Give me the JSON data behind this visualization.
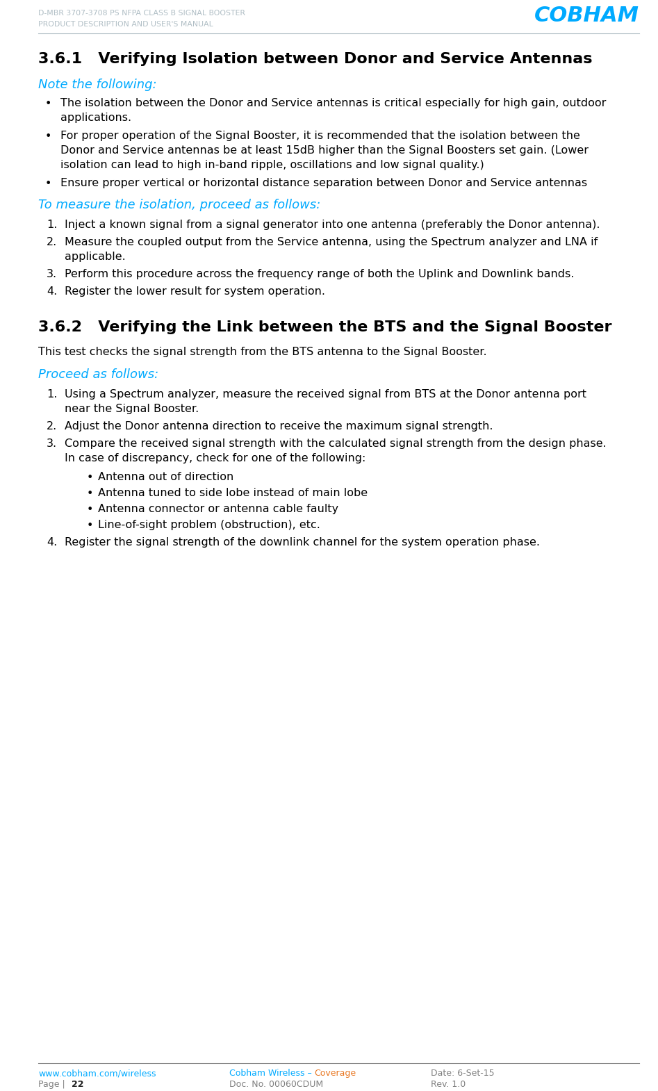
{
  "header_left_line1": "D-MBR 3707-3708 PS NFPA CLASS B SIGNAL BOOSTER",
  "header_left_line2": "PRODUCT DESCRIPTION AND USER'S MANUAL",
  "header_color": "#b0bec5",
  "cobham_color": "#00aaff",
  "cobham_text": "COBHAM",
  "footer_link_color": "#00aaff",
  "footer_orange_color": "#e87722",
  "footer_gray_color": "#808080",
  "footer_bold_color": "#222222",
  "bg_color": "#ffffff",
  "section_361_title": "3.6.1   Verifying Isolation between Donor and Service Antennas",
  "section_362_title": "3.6.2   Verifying the Link between the BTS and the Signal Booster",
  "note_heading": "Note the following:",
  "measure_heading": "To measure the isolation, proceed as follows:",
  "proceed_heading": "Proceed as follows:",
  "heading_color": "#00aaff",
  "section_title_color": "#000000",
  "body_color": "#000000",
  "bullet_items_361": [
    [
      "The isolation between the Donor and Service antennas is critical especially for high gain, outdoor",
      "applications."
    ],
    [
      "For proper operation of the Signal Booster, it is recommended that the isolation between the",
      "Donor and Service antennas be at least 15dB higher than the Signal Boosters set gain. (Lower",
      "isolation can lead to high in-band ripple, oscillations and low signal quality.)"
    ],
    [
      "Ensure proper vertical or horizontal distance separation between Donor and Service antennas"
    ]
  ],
  "numbered_items_361": [
    [
      "Inject a known signal from a signal generator into one antenna (preferably the Donor antenna)."
    ],
    [
      "Measure the coupled output from the Service antenna, using the Spectrum analyzer and LNA if",
      "applicable."
    ],
    [
      "Perform this procedure across the frequency range of both the Uplink and Downlink bands."
    ],
    [
      "Register the lower result for system operation."
    ]
  ],
  "section_362_intro": "This test checks the signal strength from the BTS antenna to the Signal Booster.",
  "numbered_items_362_pre": [
    [
      "Using a Spectrum analyzer, measure the received signal from BTS at the Donor antenna port",
      "near the Signal Booster."
    ],
    [
      "Adjust the Donor antenna direction to receive the maximum signal strength."
    ],
    [
      "Compare the received signal strength with the calculated signal strength from the design phase.",
      "In case of discrepancy, check for one of the following:"
    ]
  ],
  "sub_bullet_items_362": [
    "Antenna out of direction",
    "Antenna tuned to side lobe instead of main lobe",
    "Antenna connector or antenna cable faulty",
    "Line-of-sight problem (obstruction), etc."
  ],
  "numbered_item_362_last": [
    "Register the signal strength of the downlink channel for the system operation phase."
  ],
  "footer_col1_line1": "www.cobham.com/wireless",
  "footer_col1_line2": "Page | 22",
  "footer_col2_line1a": "Cobham Wireless – ",
  "footer_col2_line1b": "Coverage",
  "footer_col2_line2": "Doc. No. 00060CDUM",
  "footer_col3_line1": "Date: 6-Set-15",
  "footer_col3_line2": "Rev. 1.0"
}
